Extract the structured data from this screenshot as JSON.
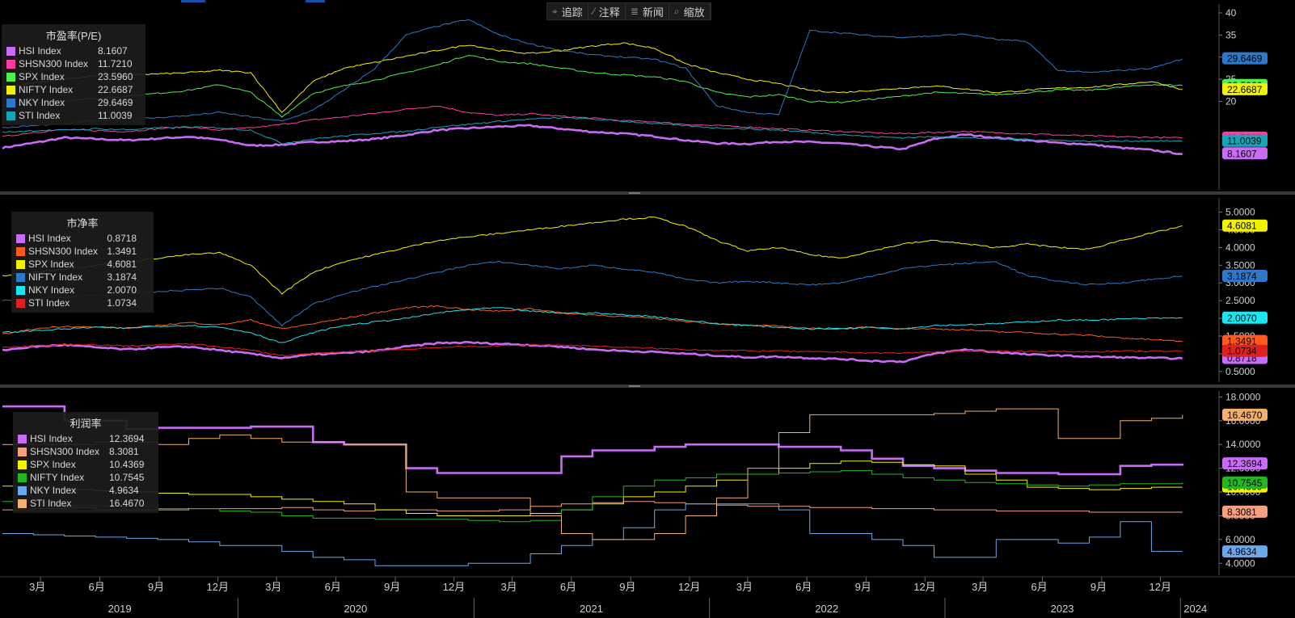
{
  "toolbar": {
    "items": [
      {
        "icon": "crosshair-icon",
        "label": "追踪"
      },
      {
        "icon": "pencil-icon",
        "label": "注释"
      },
      {
        "icon": "news-icon",
        "label": "新闻"
      },
      {
        "icon": "zoom-icon",
        "label": "缩放"
      }
    ]
  },
  "x_axis": {
    "months": [
      "3月",
      "6月",
      "9月",
      "12月",
      "3月",
      "6月",
      "9月",
      "12月",
      "3月",
      "6月",
      "9月",
      "12月",
      "3月",
      "6月",
      "9月",
      "12月",
      "3月",
      "6月",
      "9月",
      "12月"
    ],
    "years": [
      "2019",
      "2020",
      "2021",
      "2022",
      "2023",
      "2024"
    ]
  },
  "chart_data": [
    {
      "type": "line",
      "title": "市盈率(P/E)",
      "x_range": [
        "2019-01-01",
        "2024-02-01"
      ],
      "ylim": [
        0,
        42
      ],
      "y_ticks": [
        "40",
        "35",
        "30",
        "25",
        "20"
      ],
      "series": [
        {
          "name": "HSI Index",
          "last": "8.1607",
          "color": "#c86cf5",
          "width": 2.6,
          "values": [
            9.5,
            10.6,
            11.8,
            11.5,
            11.2,
            11.6,
            12.0,
            11.3,
            10.0,
            10.2,
            10.8,
            11.0,
            11.5,
            12.4,
            13.5,
            13.9,
            14.3,
            14.5,
            13.8,
            13.1,
            12.7,
            12.1,
            11.2,
            10.5,
            10.4,
            10.9,
            10.8,
            10.5,
            9.8,
            9.2,
            11.5,
            12.5,
            11.8,
            11.2,
            10.6,
            10.3,
            9.5,
            9.0,
            8.1
          ]
        },
        {
          "name": "SHSN300 Index",
          "last": "11.7210",
          "color": "#ff3ba3",
          "width": 1,
          "values": [
            12.0,
            13.0,
            13.6,
            13.4,
            13.2,
            13.8,
            14.2,
            13.5,
            14.0,
            14.8,
            15.8,
            16.5,
            17.3,
            18.2,
            19.0,
            17.5,
            16.8,
            17.2,
            16.6,
            16.2,
            15.6,
            15.4,
            14.8,
            14.5,
            14.2,
            13.8,
            13.5,
            13.2,
            12.9,
            12.7,
            13.0,
            13.2,
            12.9,
            12.7,
            12.4,
            12.2,
            12.0,
            11.9,
            11.7
          ]
        },
        {
          "name": "SPX Index",
          "last": "23.5960",
          "color": "#4fef4f",
          "width": 1,
          "values": [
            19.0,
            19.6,
            20.2,
            20.6,
            21.2,
            21.8,
            22.5,
            23.8,
            22.0,
            16.5,
            21.8,
            23.5,
            24.8,
            26.5,
            28.2,
            30.5,
            29.0,
            28.5,
            27.5,
            26.5,
            26.0,
            25.5,
            24.5,
            22.0,
            21.0,
            21.5,
            20.0,
            19.8,
            20.5,
            21.2,
            22.0,
            21.8,
            21.5,
            22.0,
            22.6,
            22.5,
            23.2,
            23.8,
            23.6
          ]
        },
        {
          "name": "NIFTY Index",
          "last": "22.6687",
          "color": "#f2f200",
          "width": 1,
          "values": [
            23.2,
            24.2,
            25.0,
            25.8,
            26.0,
            26.2,
            26.5,
            27.0,
            26.5,
            17.5,
            24.5,
            27.5,
            28.8,
            30.2,
            31.5,
            32.8,
            31.5,
            30.8,
            31.5,
            32.5,
            33.2,
            32.0,
            28.5,
            26.5,
            25.0,
            24.0,
            22.5,
            22.0,
            22.5,
            23.0,
            23.5,
            22.8,
            22.0,
            22.5,
            23.0,
            23.2,
            23.8,
            24.5,
            22.7
          ]
        },
        {
          "name": "NKY Index",
          "last": "29.6469",
          "color": "#2d78c8",
          "width": 1,
          "values": [
            14.0,
            14.5,
            15.0,
            15.6,
            16.0,
            16.3,
            16.8,
            17.5,
            16.5,
            15.5,
            18.0,
            22.5,
            27.5,
            35.0,
            37.0,
            38.5,
            35.0,
            33.0,
            31.5,
            30.5,
            30.0,
            29.5,
            27.5,
            19.0,
            17.5,
            17.0,
            36.0,
            35.5,
            34.8,
            34.5,
            34.8,
            35.2,
            34.0,
            33.5,
            27.0,
            26.5,
            27.0,
            27.5,
            29.6
          ]
        },
        {
          "name": "STI Index",
          "last": "11.0039",
          "color": "#12a6b8",
          "width": 1,
          "values": [
            13.0,
            13.4,
            13.5,
            13.8,
            13.6,
            14.0,
            14.2,
            14.0,
            13.5,
            10.5,
            11.5,
            12.2,
            12.8,
            13.2,
            14.2,
            14.8,
            15.5,
            16.0,
            16.3,
            16.0,
            15.5,
            15.0,
            14.5,
            14.0,
            13.8,
            13.5,
            13.0,
            12.5,
            12.0,
            11.8,
            12.0,
            11.8,
            11.5,
            11.4,
            11.2,
            11.0,
            11.0,
            11.1,
            11.0
          ]
        }
      ]
    },
    {
      "type": "line",
      "title": "市净率",
      "x_range": [
        "2019-01-01",
        "2024-02-01"
      ],
      "ylim": [
        0.2,
        5.4
      ],
      "y_ticks": [
        "5.0000",
        "4.5000",
        "4.0000",
        "3.5000",
        "3.0000",
        "2.5000",
        "2.0000",
        "1.5000",
        "1.0000",
        "0.5000"
      ],
      "series": [
        {
          "name": "HSI Index",
          "last": "0.8718",
          "color": "#c86cf5",
          "width": 2.6,
          "values": [
            1.1,
            1.2,
            1.25,
            1.18,
            1.12,
            1.18,
            1.2,
            1.1,
            1.0,
            0.88,
            0.98,
            1.02,
            1.08,
            1.2,
            1.3,
            1.32,
            1.28,
            1.25,
            1.2,
            1.12,
            1.08,
            1.05,
            1.0,
            0.95,
            0.9,
            0.92,
            0.88,
            0.85,
            0.8,
            0.78,
            1.0,
            1.12,
            1.05,
            0.98,
            0.95,
            0.92,
            0.9,
            0.88,
            0.87
          ]
        },
        {
          "name": "SHSN300 Index",
          "last": "1.3491",
          "color": "#ff5a1e",
          "width": 1,
          "values": [
            1.55,
            1.7,
            1.78,
            1.75,
            1.72,
            1.8,
            1.88,
            1.82,
            1.95,
            1.7,
            1.85,
            2.0,
            2.15,
            2.3,
            2.35,
            2.25,
            2.2,
            2.28,
            2.15,
            2.1,
            2.05,
            2.0,
            1.92,
            1.85,
            1.8,
            1.78,
            1.72,
            1.7,
            1.75,
            1.72,
            1.7,
            1.68,
            1.62,
            1.6,
            1.55,
            1.52,
            1.45,
            1.4,
            1.35
          ]
        },
        {
          "name": "SPX Index",
          "last": "4.6081",
          "color": "#f2f200",
          "width": 1,
          "values": [
            3.2,
            3.3,
            3.4,
            3.5,
            3.6,
            3.7,
            3.8,
            3.85,
            3.5,
            2.7,
            3.3,
            3.6,
            3.8,
            4.0,
            4.2,
            4.3,
            4.4,
            4.5,
            4.6,
            4.7,
            4.8,
            4.85,
            4.6,
            4.2,
            3.9,
            4.0,
            3.8,
            3.7,
            3.9,
            4.1,
            4.2,
            4.1,
            4.0,
            4.1,
            4.0,
            3.95,
            4.2,
            4.4,
            4.61
          ]
        },
        {
          "name": "NIFTY Index",
          "last": "3.1874",
          "color": "#2d78c8",
          "width": 1,
          "values": [
            2.5,
            2.55,
            2.6,
            2.65,
            2.7,
            2.75,
            2.8,
            2.85,
            2.6,
            1.8,
            2.4,
            2.7,
            2.9,
            3.1,
            3.3,
            3.5,
            3.6,
            3.5,
            3.4,
            3.5,
            3.4,
            3.3,
            3.1,
            3.0,
            3.05,
            3.0,
            2.95,
            3.0,
            3.2,
            3.4,
            3.5,
            3.55,
            3.6,
            3.2,
            3.05,
            2.95,
            3.0,
            3.1,
            3.19
          ]
        },
        {
          "name": "NKY Index",
          "last": "2.0070",
          "color": "#18e6f2",
          "width": 1,
          "values": [
            1.6,
            1.65,
            1.7,
            1.75,
            1.72,
            1.78,
            1.8,
            1.75,
            1.6,
            1.3,
            1.6,
            1.8,
            1.9,
            2.0,
            2.15,
            2.25,
            2.3,
            2.2,
            2.15,
            2.15,
            2.1,
            2.05,
            1.95,
            1.85,
            1.8,
            1.75,
            1.7,
            1.72,
            1.75,
            1.7,
            1.8,
            1.82,
            1.85,
            1.9,
            1.95,
            1.95,
            1.98,
            2.0,
            2.01
          ]
        },
        {
          "name": "STI Index",
          "last": "1.0734",
          "color": "#e02020",
          "width": 1,
          "values": [
            1.18,
            1.22,
            1.25,
            1.25,
            1.22,
            1.25,
            1.28,
            1.2,
            1.1,
            0.95,
            1.0,
            1.05,
            1.1,
            1.12,
            1.18,
            1.2,
            1.22,
            1.25,
            1.25,
            1.22,
            1.18,
            1.15,
            1.12,
            1.1,
            1.08,
            1.08,
            1.05,
            1.05,
            1.02,
            1.02,
            1.05,
            1.08,
            1.08,
            1.07,
            1.06,
            1.06,
            1.07,
            1.07,
            1.07
          ]
        }
      ]
    },
    {
      "type": "line",
      "title": "利润率",
      "x_range": [
        "2019-01-01",
        "2024-02-01"
      ],
      "ylim": [
        3.0,
        18.5
      ],
      "y_ticks": [
        "18.0000",
        "16.0000",
        "14.0000",
        "12.0000",
        "10.0000",
        "8.0000",
        "6.0000",
        "4.0000"
      ],
      "series": [
        {
          "name": "HSI Index",
          "last": "12.3694",
          "color": "#c86cf5",
          "width": 2.6,
          "values": [
            17.2,
            17.2,
            16.0,
            16.0,
            15.3,
            15.4,
            15.4,
            15.4,
            15.5,
            15.5,
            14.2,
            14.0,
            14.0,
            12.0,
            11.6,
            11.6,
            11.6,
            11.6,
            13.0,
            13.5,
            13.5,
            13.8,
            14.0,
            14.0,
            14.0,
            13.8,
            13.8,
            13.5,
            12.8,
            12.2,
            12.0,
            11.8,
            11.6,
            11.6,
            11.5,
            11.5,
            12.2,
            12.3,
            12.4
          ]
        },
        {
          "name": "SHSN300 Index",
          "last": "8.3081",
          "color": "#f5a080",
          "width": 1,
          "values": [
            8.5,
            8.6,
            8.7,
            8.5,
            8.5,
            8.5,
            8.6,
            8.6,
            8.6,
            8.7,
            8.5,
            8.4,
            8.5,
            8.5,
            8.4,
            8.4,
            8.5,
            8.8,
            9.0,
            9.1,
            9.2,
            9.1,
            9.0,
            8.9,
            8.8,
            8.8,
            8.7,
            8.7,
            8.6,
            8.6,
            8.5,
            8.5,
            8.4,
            8.4,
            8.4,
            8.3,
            8.3,
            8.3,
            8.3
          ]
        },
        {
          "name": "SPX Index",
          "last": "10.4369",
          "color": "#f2f200",
          "width": 1,
          "values": [
            10.5,
            10.3,
            10.2,
            10.1,
            10.0,
            9.9,
            9.8,
            9.8,
            9.6,
            9.4,
            9.2,
            9.0,
            8.5,
            8.2,
            8.0,
            8.0,
            8.0,
            8.2,
            8.5,
            9.0,
            9.6,
            10.0,
            10.5,
            11.0,
            11.5,
            12.0,
            12.4,
            12.6,
            12.5,
            12.3,
            12.2,
            11.5,
            11.0,
            10.4,
            10.3,
            10.2,
            10.3,
            10.4,
            10.4
          ]
        },
        {
          "name": "NIFTY Index",
          "last": "10.7545",
          "color": "#22b822",
          "width": 1,
          "values": [
            9.2,
            9.2,
            8.9,
            8.8,
            8.8,
            8.6,
            8.6,
            8.4,
            8.3,
            8.0,
            7.8,
            7.8,
            7.7,
            7.7,
            7.7,
            7.6,
            7.5,
            7.6,
            8.5,
            9.6,
            10.5,
            11.0,
            11.2,
            11.5,
            11.5,
            11.6,
            11.7,
            11.8,
            11.5,
            11.2,
            11.0,
            10.8,
            10.7,
            10.6,
            10.5,
            10.6,
            10.7,
            10.7,
            10.8
          ]
        },
        {
          "name": "NKY Index",
          "last": "4.9634",
          "color": "#6aa8ee",
          "width": 1,
          "values": [
            6.5,
            6.4,
            6.3,
            6.2,
            6.1,
            6.0,
            5.8,
            5.5,
            5.5,
            5.0,
            4.5,
            4.3,
            3.8,
            3.8,
            3.8,
            4.0,
            4.0,
            4.8,
            5.5,
            6.0,
            7.0,
            8.5,
            9.0,
            9.0,
            9.0,
            8.5,
            6.5,
            6.5,
            6.0,
            5.5,
            4.5,
            4.5,
            6.0,
            6.0,
            5.7,
            6.2,
            7.5,
            5.0,
            5.0
          ]
        },
        {
          "name": "STI Index",
          "last": "16.4670",
          "color": "#f0b070",
          "width": 1,
          "values": [
            14.0,
            14.0,
            14.0,
            14.2,
            14.2,
            14.0,
            14.5,
            14.8,
            14.5,
            14.2,
            14.2,
            14.0,
            14.0,
            10.0,
            9.5,
            9.5,
            9.5,
            8.0,
            6.5,
            6.0,
            6.0,
            6.5,
            8.0,
            9.5,
            12.0,
            15.0,
            16.5,
            16.5,
            16.5,
            16.5,
            16.6,
            16.8,
            17.0,
            17.0,
            14.5,
            14.5,
            16.0,
            16.2,
            16.5
          ]
        }
      ]
    }
  ]
}
